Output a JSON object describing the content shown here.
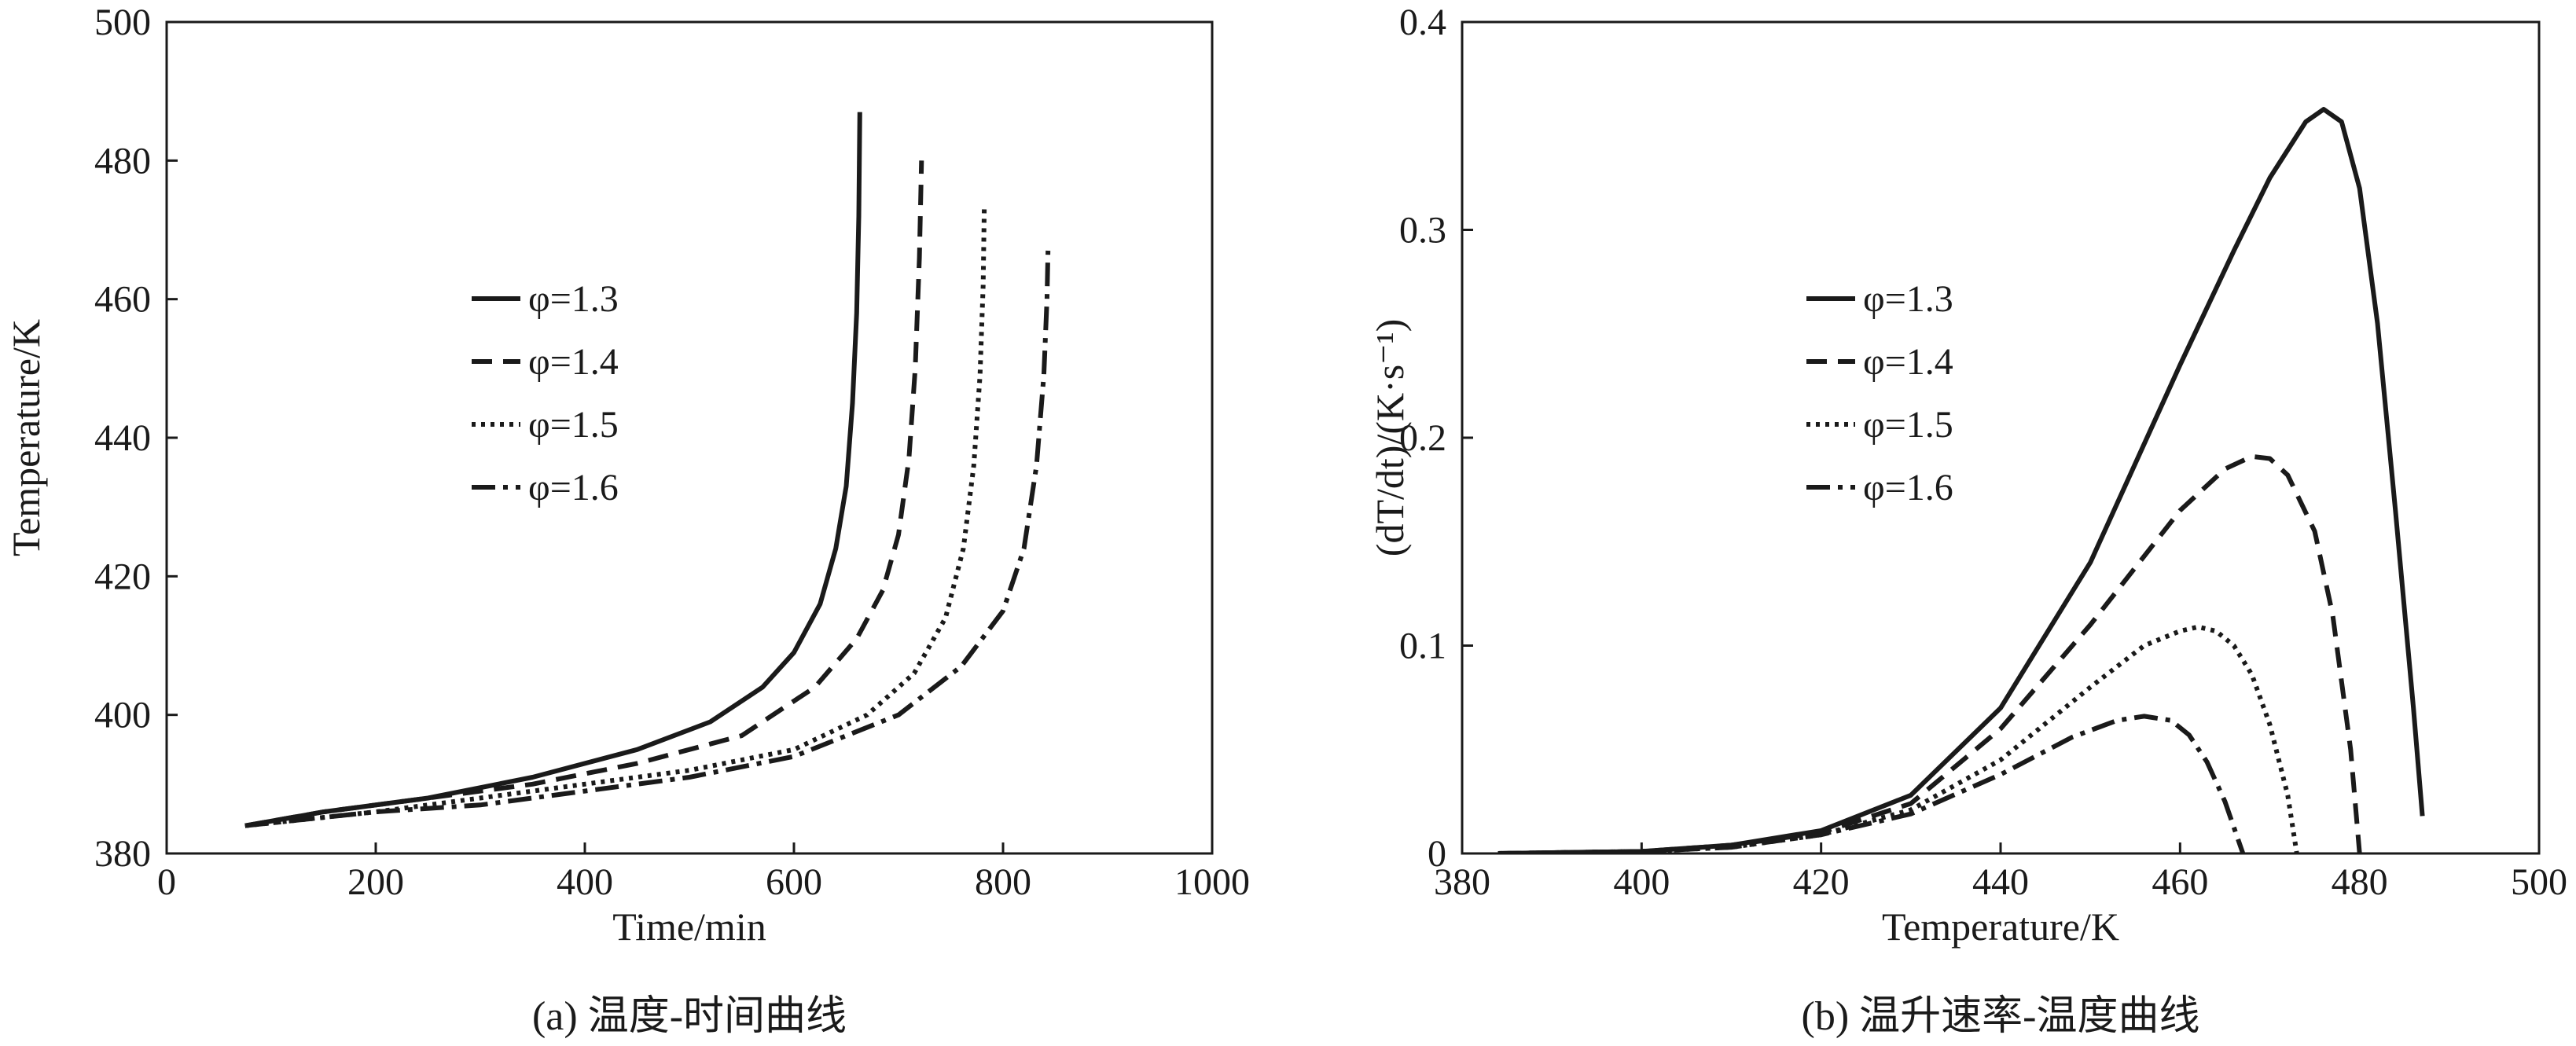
{
  "chart_data": [
    {
      "type": "line",
      "caption": "(a) 温度-时间曲线",
      "xlabel": "Time/min",
      "ylabel": "Temperature/K",
      "xlim": [
        0,
        1000
      ],
      "ylim": [
        380,
        500
      ],
      "xticks": [
        "0",
        "200",
        "400",
        "600",
        "800",
        "1000"
      ],
      "yticks": [
        "380",
        "400",
        "420",
        "440",
        "460",
        "480",
        "500"
      ],
      "legend_position": "center-left",
      "series": [
        {
          "name": "φ=1.3",
          "style": "solid",
          "x": [
            75,
            150,
            250,
            350,
            450,
            520,
            570,
            600,
            625,
            640,
            650,
            656,
            660,
            662,
            663
          ],
          "y": [
            384,
            386,
            388,
            391,
            395,
            399,
            404,
            409,
            416,
            424,
            433,
            445,
            458,
            472,
            487
          ]
        },
        {
          "name": "φ=1.4",
          "style": "dashed",
          "x": [
            75,
            150,
            250,
            350,
            450,
            550,
            620,
            660,
            685,
            700,
            710,
            716,
            720,
            722
          ],
          "y": [
            384,
            386,
            388,
            390,
            393,
            397,
            404,
            411,
            418,
            426,
            437,
            450,
            466,
            480
          ]
        },
        {
          "name": "φ=1.5",
          "style": "dotted",
          "x": [
            75,
            200,
            300,
            400,
            500,
            600,
            670,
            715,
            745,
            762,
            772,
            778,
            781,
            782
          ],
          "y": [
            384,
            386,
            388,
            390,
            392,
            395,
            400,
            406,
            414,
            424,
            436,
            449,
            462,
            473
          ]
        },
        {
          "name": "φ=1.6",
          "style": "dashdot",
          "x": [
            75,
            200,
            300,
            400,
            500,
            600,
            700,
            760,
            800,
            820,
            832,
            839,
            842,
            843
          ],
          "y": [
            384,
            386,
            387,
            389,
            391,
            394,
            400,
            407,
            415,
            424,
            436,
            449,
            460,
            467
          ]
        }
      ]
    },
    {
      "type": "line",
      "caption": "(b) 温升速率-温度曲线",
      "xlabel": "Temperature/K",
      "ylabel": "(dT/dt)/(K·s⁻¹)",
      "xlim": [
        380,
        500
      ],
      "ylim": [
        0,
        0.4
      ],
      "xticks": [
        "380",
        "400",
        "420",
        "440",
        "460",
        "480",
        "500"
      ],
      "yticks": [
        "0",
        "0.1",
        "0.2",
        "0.3",
        "0.4"
      ],
      "legend_position": "upper-left",
      "series": [
        {
          "name": "φ=1.3",
          "style": "solid",
          "x": [
            384,
            400,
            410,
            420,
            430,
            440,
            450,
            460,
            466,
            470,
            474,
            476,
            478,
            480,
            482,
            484,
            486,
            487
          ],
          "y": [
            0,
            0.001,
            0.004,
            0.011,
            0.028,
            0.07,
            0.14,
            0.235,
            0.29,
            0.325,
            0.352,
            0.358,
            0.352,
            0.32,
            0.255,
            0.165,
            0.07,
            0.018
          ]
        },
        {
          "name": "φ=1.4",
          "style": "dashed",
          "x": [
            384,
            400,
            410,
            420,
            430,
            440,
            450,
            460,
            465,
            468,
            470,
            472,
            475,
            477,
            479,
            480
          ],
          "y": [
            0,
            0.001,
            0.004,
            0.01,
            0.024,
            0.06,
            0.11,
            0.165,
            0.185,
            0.191,
            0.19,
            0.182,
            0.155,
            0.115,
            0.05,
            0
          ]
        },
        {
          "name": "φ=1.5",
          "style": "dotted",
          "x": [
            384,
            400,
            410,
            420,
            430,
            440,
            450,
            456,
            460,
            462,
            464,
            466,
            468,
            470,
            472,
            473
          ],
          "y": [
            0,
            0.001,
            0.003,
            0.009,
            0.021,
            0.045,
            0.08,
            0.1,
            0.107,
            0.109,
            0.107,
            0.1,
            0.086,
            0.062,
            0.028,
            0
          ]
        },
        {
          "name": "φ=1.6",
          "style": "dashdot",
          "x": [
            384,
            400,
            410,
            420,
            430,
            440,
            448,
            453,
            456,
            459,
            461,
            463,
            465,
            467
          ],
          "y": [
            0,
            0.001,
            0.003,
            0.009,
            0.019,
            0.038,
            0.056,
            0.064,
            0.066,
            0.064,
            0.057,
            0.044,
            0.025,
            0
          ]
        }
      ]
    }
  ]
}
